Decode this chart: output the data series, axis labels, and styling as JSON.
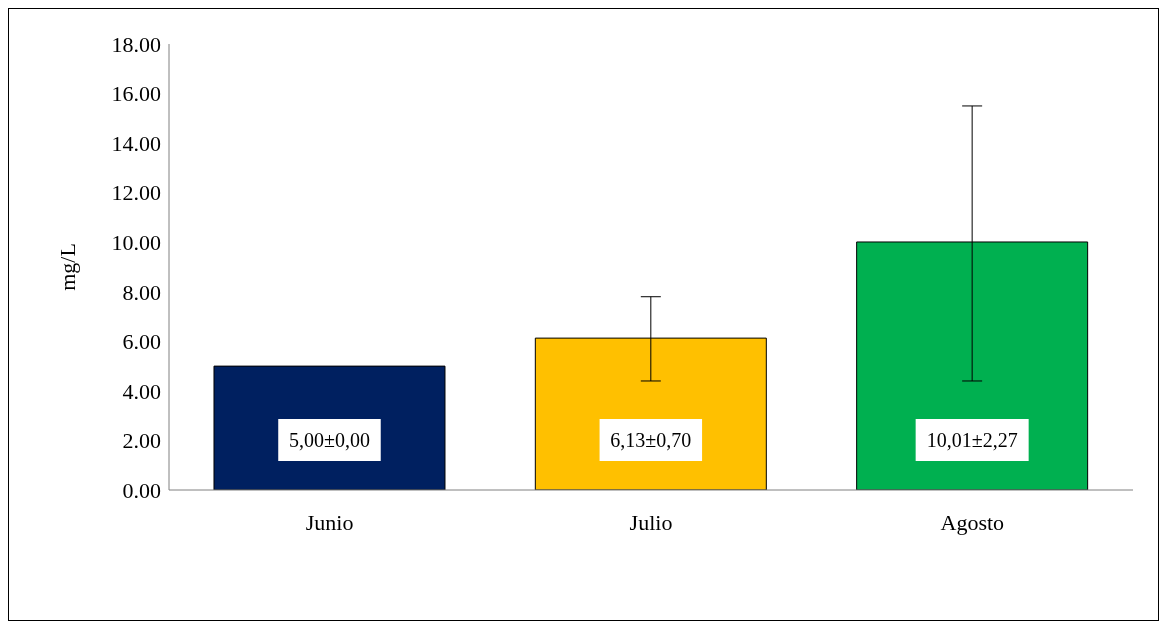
{
  "chart_data": {
    "type": "bar",
    "ylabel": "mg/L",
    "categories": [
      "Junio",
      "Julio",
      "Agosto"
    ],
    "values": [
      5.0,
      6.13,
      10.01
    ],
    "colors": [
      "#002060",
      "#ffc000",
      "#00b050"
    ],
    "errors": [
      null,
      [
        4.4,
        7.8
      ],
      [
        4.4,
        15.5
      ]
    ],
    "value_labels": [
      "5,00±0,00",
      "6,13±0,70",
      "10,01±2,27"
    ],
    "ylim": [
      0,
      18
    ],
    "yticks": [
      {
        "value": 0,
        "label": "0.00"
      },
      {
        "value": 2,
        "label": "2.00"
      },
      {
        "value": 4,
        "label": "4.00"
      },
      {
        "value": 6,
        "label": "6.00"
      },
      {
        "value": 8,
        "label": "8.00"
      },
      {
        "value": 10,
        "label": "10.00"
      },
      {
        "value": 12,
        "label": "12.00"
      },
      {
        "value": 14,
        "label": "14.00"
      },
      {
        "value": 16,
        "label": "16.00"
      },
      {
        "value": 18,
        "label": "18.00"
      }
    ],
    "grid": false,
    "legend": false
  }
}
